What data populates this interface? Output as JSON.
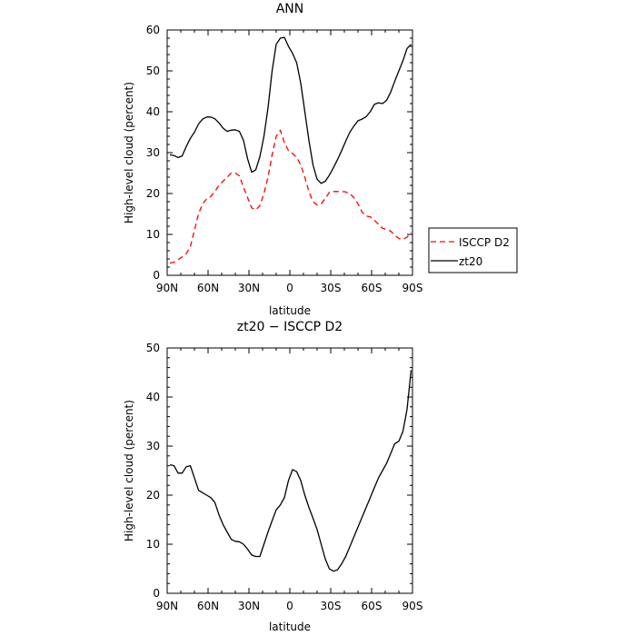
{
  "chart_data": [
    {
      "type": "line",
      "title": "ANN",
      "xlabel": "latitude",
      "ylabel": "High-level cloud (percent)",
      "xlim": [
        90,
        -90
      ],
      "ylim": [
        0,
        60
      ],
      "x_ticks": [
        90,
        60,
        30,
        0,
        -30,
        -60,
        -90
      ],
      "x_tick_labels": [
        "90N",
        "60N",
        "30N",
        "0",
        "30S",
        "60S",
        "90S"
      ],
      "y_ticks": [
        0,
        10,
        20,
        30,
        40,
        50,
        60
      ],
      "y_tick_labels": [
        "0",
        "10",
        "20",
        "30",
        "40",
        "50",
        "60"
      ],
      "legend": "right",
      "series": [
        {
          "name": "ISCCP D2",
          "color": "#ff0000",
          "dash": "dashed",
          "x": [
            88,
            85,
            82,
            79,
            76,
            73,
            70,
            67,
            64,
            61,
            58,
            55,
            52,
            49,
            46,
            43,
            40,
            37,
            34,
            31,
            28,
            25,
            22,
            19,
            16,
            13,
            10,
            7,
            4,
            1,
            -2,
            -5,
            -8,
            -11,
            -14,
            -17,
            -20,
            -23,
            -26,
            -29,
            -32,
            -35,
            -38,
            -41,
            -44,
            -47,
            -50,
            -53,
            -56,
            -59,
            -62,
            -65,
            -68,
            -71,
            -74,
            -77,
            -80,
            -83,
            -86,
            -89
          ],
          "values": [
            3,
            3.2,
            3.8,
            4.5,
            5.3,
            7,
            11,
            15,
            17.5,
            18.7,
            19.3,
            20.5,
            22,
            23,
            24,
            25,
            25,
            24.3,
            21.5,
            19,
            16.5,
            16,
            17,
            20,
            24,
            29.5,
            34,
            35.5,
            32.5,
            30.5,
            29.8,
            28.8,
            27,
            24,
            20.5,
            18,
            17.2,
            17.5,
            18.8,
            20.3,
            20.5,
            20.5,
            20.5,
            20.4,
            20,
            19,
            17.5,
            15.5,
            14.5,
            14.3,
            13.5,
            12.5,
            11.5,
            11.2,
            10.8,
            9.8,
            9,
            8.8,
            9.3,
            10.5
          ]
        },
        {
          "name": "zt20",
          "color": "#000000",
          "dash": "solid",
          "x": [
            88,
            85,
            82,
            79,
            76,
            73,
            70,
            67,
            64,
            61,
            58,
            55,
            52,
            49,
            46,
            43,
            40,
            37,
            34,
            31,
            28,
            25,
            22,
            19,
            16,
            13,
            10,
            7,
            4,
            1,
            -2,
            -5,
            -8,
            -11,
            -14,
            -17,
            -20,
            -23,
            -26,
            -29,
            -32,
            -35,
            -38,
            -41,
            -44,
            -47,
            -50,
            -53,
            -56,
            -59,
            -62,
            -65,
            -68,
            -71,
            -74,
            -77,
            -80,
            -83,
            -86,
            -89
          ],
          "values": [
            29.5,
            29.3,
            28.8,
            29.2,
            31.5,
            33.5,
            35,
            37,
            38.2,
            38.7,
            38.7,
            38.3,
            37.3,
            36,
            35.2,
            35.5,
            35.6,
            35.2,
            33,
            28.5,
            25.2,
            25.8,
            29,
            34,
            41,
            50,
            56.5,
            58,
            58.2,
            56,
            54.3,
            52,
            47,
            40,
            33,
            27,
            23.5,
            22.5,
            23,
            24.5,
            26.3,
            28.3,
            30.5,
            32.8,
            35,
            36.5,
            37.8,
            38.2,
            38.8,
            40,
            41.8,
            42.2,
            42,
            42.8,
            44.8,
            47.5,
            50,
            52.5,
            55.5,
            56.5
          ]
        }
      ]
    },
    {
      "type": "line",
      "title": "zt20 − ISCCP D2",
      "xlabel": "latitude",
      "ylabel": "High-level cloud (percent)",
      "xlim": [
        90,
        -90
      ],
      "ylim": [
        0,
        50
      ],
      "x_ticks": [
        90,
        60,
        30,
        0,
        -30,
        -60,
        -90
      ],
      "x_tick_labels": [
        "90N",
        "60N",
        "30N",
        "0",
        "30S",
        "60S",
        "90S"
      ],
      "y_ticks": [
        0,
        10,
        20,
        30,
        40,
        50
      ],
      "y_tick_labels": [
        "0",
        "10",
        "20",
        "30",
        "40",
        "50"
      ],
      "series": [
        {
          "color": "#000000",
          "dash": "solid",
          "x": [
            88,
            85,
            82,
            79,
            76,
            73,
            70,
            67,
            64,
            61,
            58,
            55,
            52,
            49,
            46,
            43,
            40,
            37,
            34,
            31,
            28,
            25,
            22,
            19,
            16,
            13,
            10,
            7,
            4,
            1,
            -2,
            -5,
            -8,
            -11,
            -14,
            -17,
            -20,
            -23,
            -26,
            -29,
            -32,
            -35,
            -38,
            -41,
            -44,
            -47,
            -50,
            -53,
            -56,
            -59,
            -62,
            -65,
            -68,
            -71,
            -74,
            -77,
            -80,
            -83,
            -86,
            -89
          ],
          "values": [
            26.2,
            26,
            24.5,
            24.5,
            25.8,
            26,
            23.5,
            21,
            20.5,
            20,
            19.5,
            18.5,
            16,
            14,
            12.5,
            11,
            10.6,
            10.5,
            10,
            9,
            7.8,
            7.5,
            7.5,
            10,
            12.5,
            14.8,
            17,
            18,
            19.5,
            23,
            25.2,
            24.8,
            23,
            20,
            17.5,
            15.3,
            13,
            10,
            7,
            5,
            4.5,
            4.8,
            6,
            7.5,
            9.5,
            11.5,
            13.5,
            15.5,
            17.5,
            19.5,
            21.5,
            23.5,
            25,
            26.5,
            28.5,
            30.5,
            31,
            33,
            37.5,
            45.5
          ]
        }
      ]
    }
  ]
}
